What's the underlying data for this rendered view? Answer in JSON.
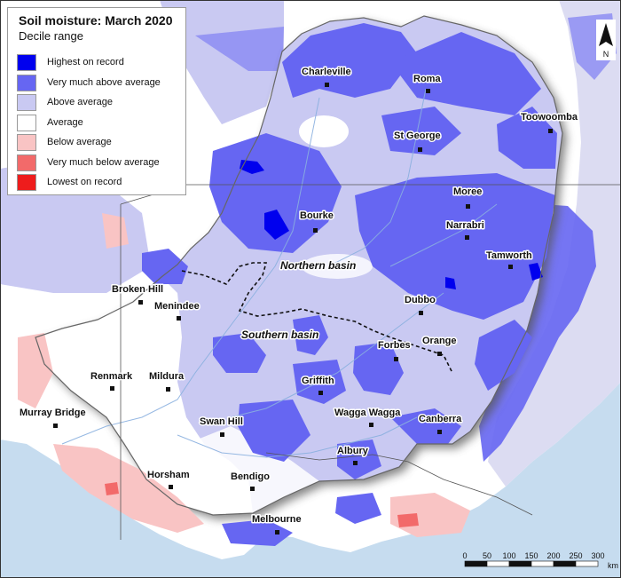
{
  "map": {
    "title": "Soil moisture: March 2020",
    "subtitle": "Decile range",
    "legend": [
      {
        "label": "Highest on record",
        "color": "#0000ee"
      },
      {
        "label": "Very much above average",
        "color": "#6666f2"
      },
      {
        "label": "Above average",
        "color": "#c9c9f2"
      },
      {
        "label": "Average",
        "color": "#ffffff"
      },
      {
        "label": "Below average",
        "color": "#f9c4c4"
      },
      {
        "label": "Very much below average",
        "color": "#f26a6a"
      },
      {
        "label": "Lowest on record",
        "color": "#ee1c1c"
      }
    ],
    "places": [
      "Charleville",
      "Roma",
      "Toowoomba",
      "St George",
      "Moree",
      "Bourke",
      "Narrabri",
      "Tamworth",
      "Broken Hill",
      "Menindee",
      "Dubbo",
      "Orange",
      "Forbes",
      "Renmark",
      "Mildura",
      "Griffith",
      "Murray Bridge",
      "Wagga Wagga",
      "Canberra",
      "Swan Hill",
      "Albury",
      "Horsham",
      "Bendigo",
      "Melbourne"
    ],
    "regions": [
      "Northern basin",
      "Southern basin"
    ],
    "scale_bar": {
      "ticks": [
        "0",
        "50",
        "100",
        "150",
        "200",
        "250",
        "300"
      ],
      "unit": "km"
    },
    "north_label": "N"
  }
}
